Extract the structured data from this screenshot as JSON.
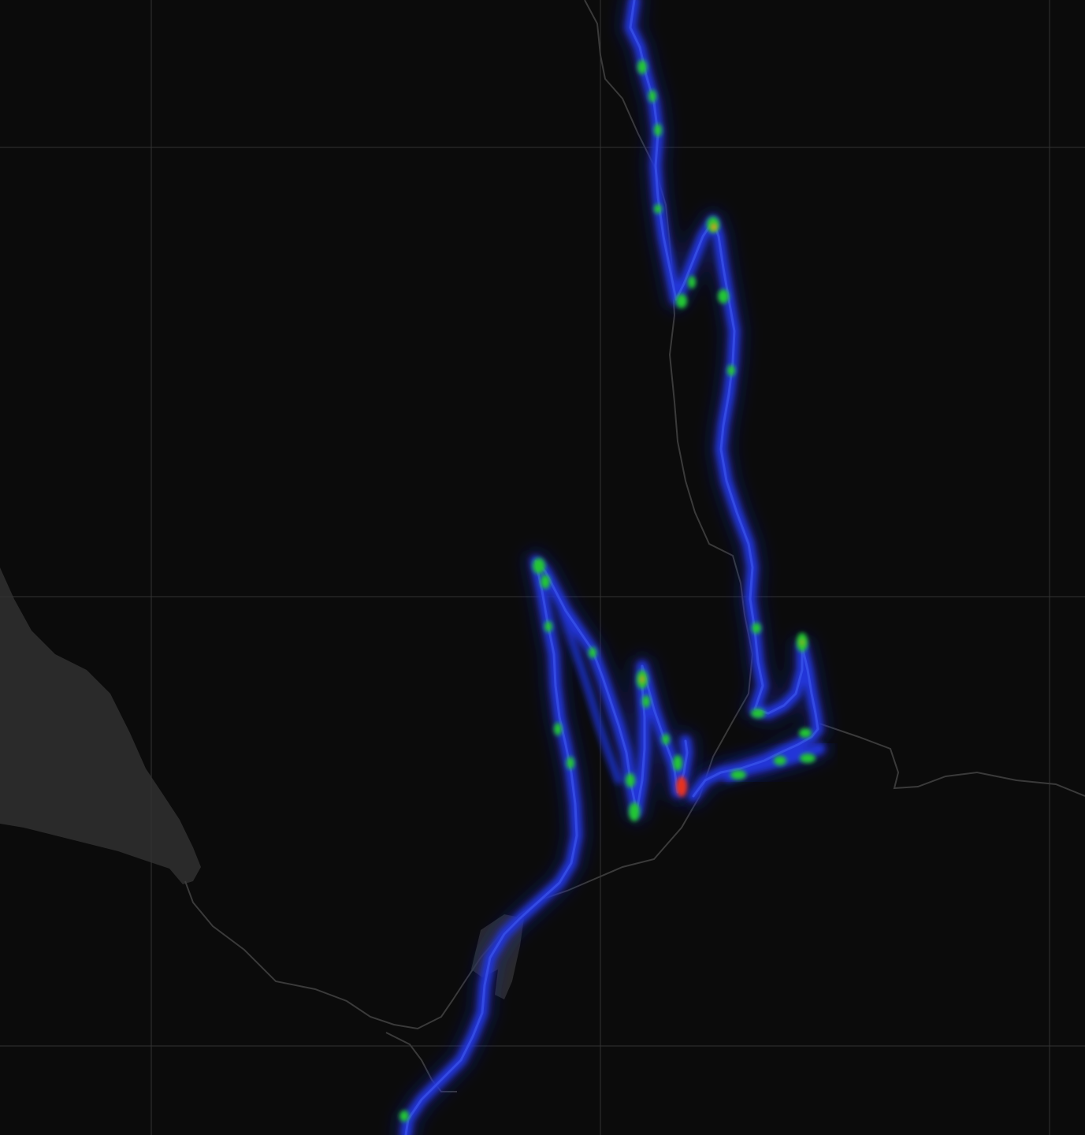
{
  "map": {
    "theme": "dark",
    "colors": {
      "background": "#0b0b0b",
      "water": "#2a2a2a",
      "grid": "#333333",
      "boundary": "#3a3a3a",
      "heat_low": "#1f33c8",
      "heat_mid": "#22c832",
      "heat_high": "#e8321e"
    },
    "layers": {
      "tiles": "dark-basemap",
      "heatmap": "activity-heatmap",
      "grid": true
    },
    "labels": {
      "road_1": "",
      "road_2": "",
      "road_3": "",
      "place_left": ""
    }
  }
}
